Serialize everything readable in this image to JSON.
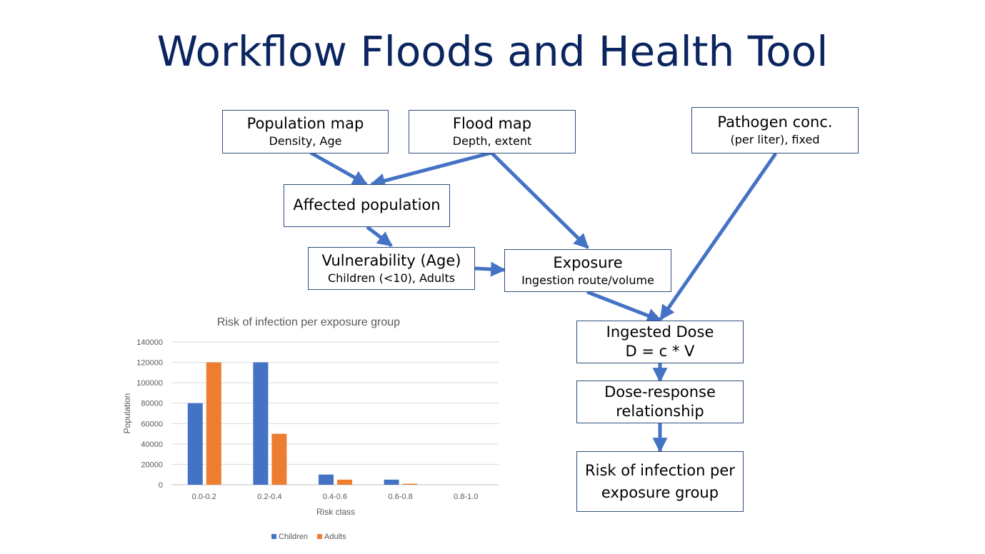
{
  "title": "Workflow Floods and Health Tool",
  "boxes": {
    "population_map": {
      "main": "Population map",
      "sub": "Density, Age"
    },
    "flood_map": {
      "main": "Flood map",
      "sub": "Depth, extent"
    },
    "pathogen": {
      "main": "Pathogen conc.",
      "sub": "(per liter), fixed"
    },
    "affected": {
      "main": "Affected population"
    },
    "vulnerability": {
      "main": "Vulnerability (Age)",
      "sub": "Children (<10), Adults"
    },
    "exposure": {
      "main": "Exposure",
      "sub": "Ingestion route/volume"
    },
    "ingested_dose": {
      "line1": "Ingested Dose",
      "line2": "D = c * V"
    },
    "dose_response": {
      "line1": "Dose-response",
      "line2": "relationship"
    },
    "risk": {
      "line1": "Risk of infection per",
      "line2": "exposure group"
    }
  },
  "colors": {
    "arrow": "#4472c4",
    "title": "#0b2560",
    "children": "#4472c4",
    "adults": "#ed7d31"
  },
  "chart_data": {
    "type": "bar",
    "title": "Risk of infection per exposure group",
    "xlabel": "Risk class",
    "ylabel": "Population",
    "categories": [
      "0.0-0.2",
      "0.2-0.4",
      "0.4-0.6",
      "0.6-0.8",
      "0.8-1.0"
    ],
    "series": [
      {
        "name": "Children",
        "values": [
          80000,
          120000,
          10000,
          5000,
          0
        ]
      },
      {
        "name": "Adults",
        "values": [
          120000,
          50000,
          5000,
          1000,
          0
        ]
      }
    ],
    "yticks": [
      0,
      20000,
      40000,
      60000,
      80000,
      100000,
      120000,
      140000
    ],
    "ylim": [
      0,
      140000
    ],
    "grid": true,
    "legend": "bottom"
  }
}
